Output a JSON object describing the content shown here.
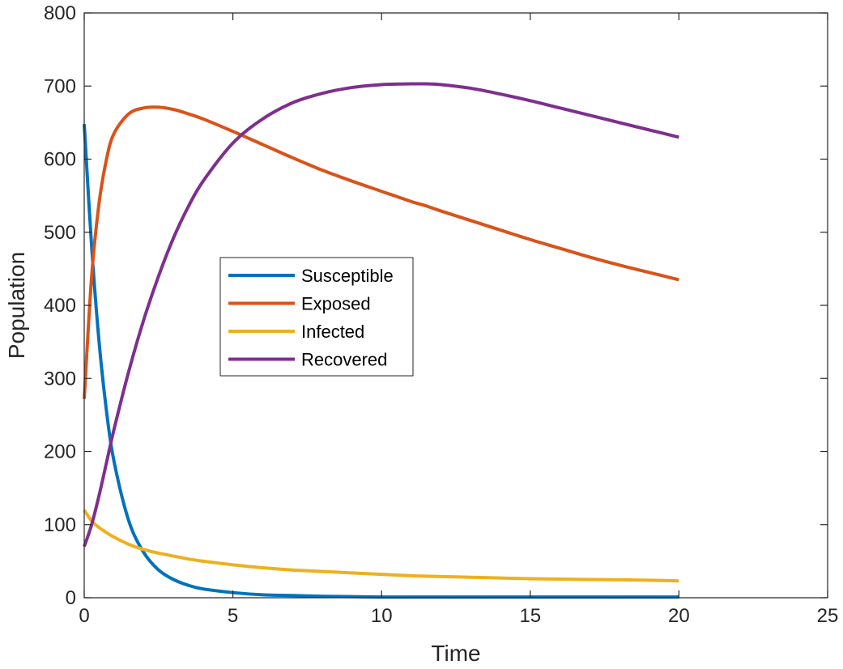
{
  "chart_data": {
    "type": "line",
    "title": "",
    "xlabel": "Time",
    "ylabel": "Population",
    "xlim": [
      0,
      25
    ],
    "ylim": [
      0,
      800
    ],
    "xticks": [
      0,
      5,
      10,
      15,
      20,
      25
    ],
    "yticks": [
      0,
      100,
      200,
      300,
      400,
      500,
      600,
      700,
      800
    ],
    "xtick_labels": [
      "0",
      "5",
      "10",
      "15",
      "20",
      "25"
    ],
    "ytick_labels": [
      "0",
      "100",
      "200",
      "300",
      "400",
      "500",
      "600",
      "700",
      "800"
    ],
    "grid": false,
    "legend": {
      "location": "center",
      "entries": [
        "Susceptible",
        "Exposed",
        "Infected",
        "Recovered"
      ]
    },
    "x": [
      0,
      0.25,
      0.5,
      0.75,
      1,
      1.5,
      2,
      2.5,
      3,
      3.5,
      4,
      5,
      6,
      7,
      8,
      9,
      10,
      11,
      11.5,
      12,
      13,
      14,
      15,
      16,
      17,
      18,
      19,
      20
    ],
    "series": [
      {
        "name": "Susceptible",
        "color": "#0072BD",
        "values": [
          648,
          480,
          350,
          255,
          187,
          105,
          62,
          38,
          25,
          17,
          12,
          7,
          4,
          3,
          2,
          1.5,
          1,
          1,
          1,
          1,
          1,
          1,
          1,
          1,
          1,
          1,
          1,
          1
        ]
      },
      {
        "name": "Exposed",
        "color": "#D95319",
        "values": [
          272,
          440,
          540,
          600,
          635,
          662,
          670,
          671,
          668,
          662,
          655,
          638,
          620,
          602,
          585,
          570,
          556,
          542,
          536,
          529,
          516,
          503,
          490,
          478,
          466,
          455,
          445,
          435
        ]
      },
      {
        "name": "Infected",
        "color": "#EDB120",
        "values": [
          120,
          105,
          96,
          89,
          83,
          73,
          66,
          61,
          57,
          53,
          50,
          45,
          41,
          38,
          36,
          34,
          32,
          30,
          29.5,
          29,
          28,
          27,
          26,
          25.5,
          25,
          24.5,
          24,
          23
        ]
      },
      {
        "name": "Recovered",
        "color": "#7E2F8E",
        "values": [
          70,
          100,
          140,
          185,
          230,
          310,
          380,
          440,
          492,
          535,
          570,
          622,
          655,
          677,
          690,
          698,
          702,
          703,
          703,
          702,
          697,
          689,
          680,
          670,
          660,
          650,
          640,
          630
        ]
      }
    ]
  }
}
